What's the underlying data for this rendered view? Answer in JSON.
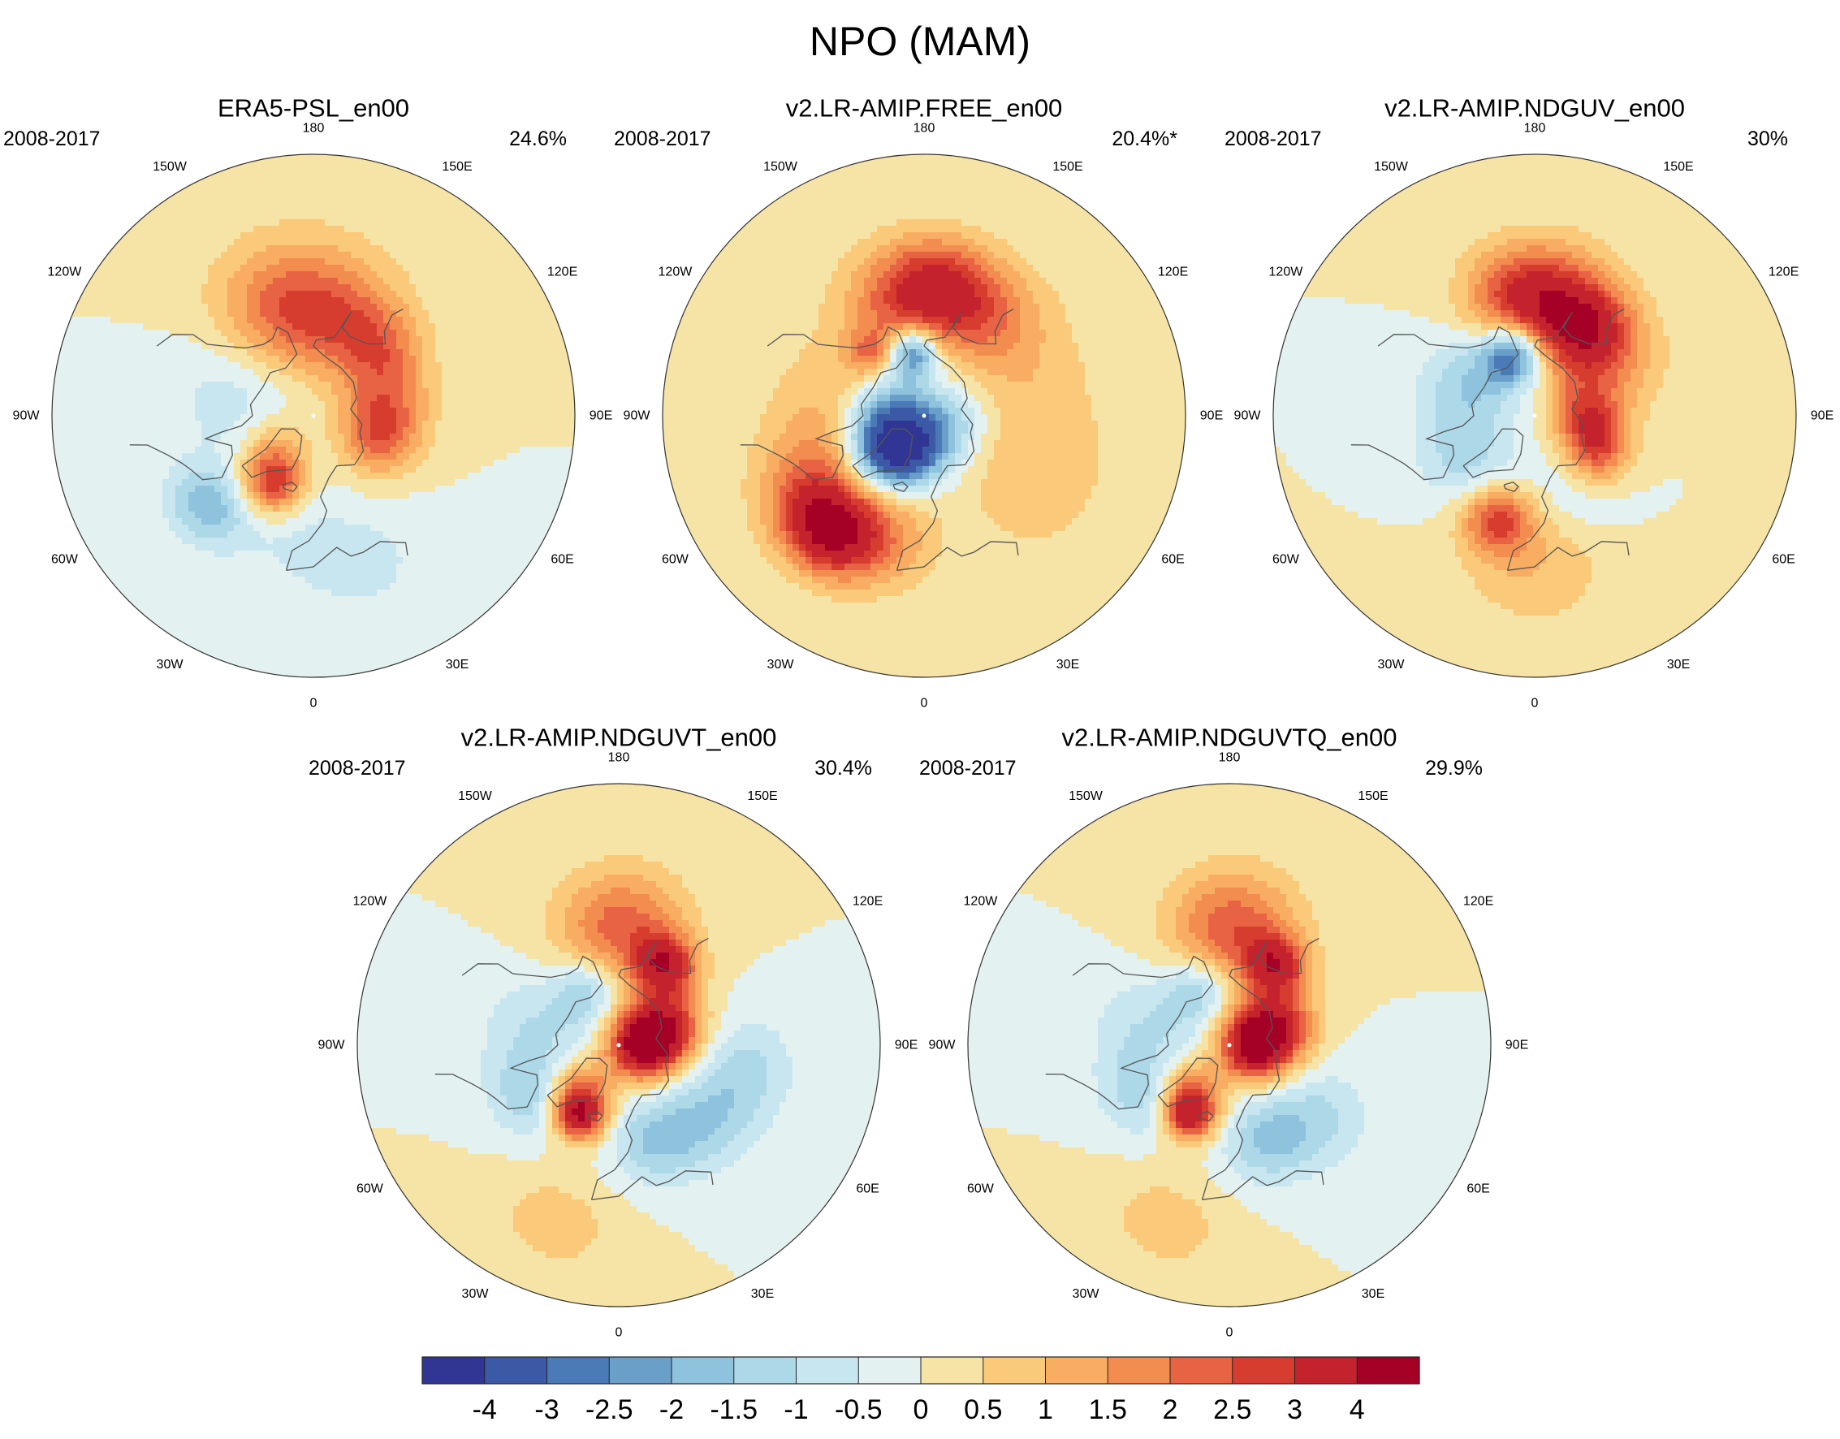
{
  "figure": {
    "title": "NPO (MAM)"
  },
  "chart_data": {
    "type": "heatmap",
    "title": "NPO (MAM)",
    "projection": "north polar stereographic",
    "panels": [
      {
        "title": "ERA5-PSL_en00",
        "period": "2008-2017",
        "variance": "24.6%",
        "features": [
          {
            "lon": -160,
            "lat": 48,
            "value": 1.2,
            "spread": 16
          },
          {
            "lon": -168,
            "lat": 58,
            "value": 1.0,
            "spread": 14
          },
          {
            "lon": 155,
            "lat": 55,
            "value": 1.0,
            "spread": 12
          },
          {
            "lon": 130,
            "lat": 58,
            "value": 1.2,
            "spread": 10
          },
          {
            "lon": 95,
            "lat": 65,
            "value": 1.5,
            "spread": 11
          },
          {
            "lon": 70,
            "lat": 66,
            "value": 1.6,
            "spread": 9
          },
          {
            "lon": -30,
            "lat": 62,
            "value": 2.6,
            "spread": 7
          },
          {
            "lon": -45,
            "lat": 72,
            "value": 1.5,
            "spread": 8
          },
          {
            "lon": -50,
            "lat": 42,
            "value": -1.8,
            "spread": 9
          },
          {
            "lon": -110,
            "lat": 62,
            "value": -0.9,
            "spread": 16
          },
          {
            "lon": -10,
            "lat": 48,
            "value": -0.5,
            "spread": 14
          },
          {
            "lon": 20,
            "lat": 35,
            "value": -0.6,
            "spread": 14
          },
          {
            "lon": 170,
            "lat": 50,
            "value": 0.8,
            "spread": 18
          }
        ]
      },
      {
        "title": "v2.LR-AMIP.FREE_en00",
        "period": "2008-2017",
        "variance": "20.4%*",
        "features": [
          {
            "lon": 175,
            "lat": 45,
            "value": 2.3,
            "spread": 12
          },
          {
            "lon": -165,
            "lat": 50,
            "value": 1.5,
            "spread": 14
          },
          {
            "lon": 150,
            "lat": 48,
            "value": 1.3,
            "spread": 12
          },
          {
            "lon": -40,
            "lat": 38,
            "value": 3.0,
            "spread": 10
          },
          {
            "lon": -55,
            "lat": 45,
            "value": 2.0,
            "spread": 14
          },
          {
            "lon": -20,
            "lat": 45,
            "value": 1.5,
            "spread": 12
          },
          {
            "lon": -140,
            "lat": 62,
            "value": 1.5,
            "spread": 6
          },
          {
            "lon": 120,
            "lat": 55,
            "value": 0.8,
            "spread": 20
          },
          {
            "lon": 60,
            "lat": 45,
            "value": 0.8,
            "spread": 18
          },
          {
            "lon": -100,
            "lat": 55,
            "value": 0.8,
            "spread": 14
          },
          {
            "lon": -45,
            "lat": 72,
            "value": -3.5,
            "spread": 9
          },
          {
            "lon": -10,
            "lat": 80,
            "value": -2.4,
            "spread": 9
          },
          {
            "lon": -170,
            "lat": 68,
            "value": -3.2,
            "spread": 6
          },
          {
            "lon": -100,
            "lat": 78,
            "value": -1.8,
            "spread": 10
          },
          {
            "lon": 90,
            "lat": 80,
            "value": -1.2,
            "spread": 10
          }
        ]
      },
      {
        "title": "v2.LR-AMIP.NDGUV_en00",
        "period": "2008-2017",
        "variance": "30%",
        "features": [
          {
            "lon": 170,
            "lat": 50,
            "value": 2.2,
            "spread": 14
          },
          {
            "lon": 150,
            "lat": 55,
            "value": 2.0,
            "spread": 10
          },
          {
            "lon": -170,
            "lat": 48,
            "value": 1.8,
            "spread": 12
          },
          {
            "lon": 130,
            "lat": 60,
            "value": 1.5,
            "spread": 14
          },
          {
            "lon": 60,
            "lat": 65,
            "value": 2.4,
            "spread": 8
          },
          {
            "lon": 90,
            "lat": 72,
            "value": 2.0,
            "spread": 8
          },
          {
            "lon": -20,
            "lat": 52,
            "value": 2.4,
            "spread": 8
          },
          {
            "lon": 0,
            "lat": 40,
            "value": 1.0,
            "spread": 16
          },
          {
            "lon": -160,
            "lat": 68,
            "value": -3.2,
            "spread": 7
          },
          {
            "lon": -120,
            "lat": 65,
            "value": -1.4,
            "spread": 12
          },
          {
            "lon": -60,
            "lat": 62,
            "value": -1.2,
            "spread": 12
          },
          {
            "lon": 30,
            "lat": 60,
            "value": -0.7,
            "spread": 12
          }
        ]
      },
      {
        "title": "v2.LR-AMIP.NDGUVT_en00",
        "period": "2008-2017",
        "variance": "30.4%",
        "features": [
          {
            "lon": 150,
            "lat": 58,
            "value": 3.2,
            "spread": 7
          },
          {
            "lon": 175,
            "lat": 48,
            "value": 1.4,
            "spread": 14
          },
          {
            "lon": -175,
            "lat": 52,
            "value": 1.0,
            "spread": 14
          },
          {
            "lon": 90,
            "lat": 82,
            "value": 4.2,
            "spread": 8
          },
          {
            "lon": 110,
            "lat": 72,
            "value": 3.0,
            "spread": 9
          },
          {
            "lon": -30,
            "lat": 62,
            "value": 3.5,
            "spread": 6
          },
          {
            "lon": -40,
            "lat": 70,
            "value": 2.0,
            "spread": 8
          },
          {
            "lon": -150,
            "lat": 68,
            "value": -1.4,
            "spread": 8
          },
          {
            "lon": -100,
            "lat": 62,
            "value": -1.0,
            "spread": 14
          },
          {
            "lon": -60,
            "lat": 55,
            "value": -1.2,
            "spread": 10
          },
          {
            "lon": 20,
            "lat": 55,
            "value": -1.4,
            "spread": 10
          },
          {
            "lon": 50,
            "lat": 50,
            "value": -1.2,
            "spread": 12
          },
          {
            "lon": 80,
            "lat": 45,
            "value": -1.0,
            "spread": 12
          },
          {
            "lon": -20,
            "lat": 25,
            "value": 0.8,
            "spread": 12
          }
        ]
      },
      {
        "title": "v2.LR-AMIP.NDGUVTQ_en00",
        "period": "2008-2017",
        "variance": "29.9%",
        "features": [
          {
            "lon": 150,
            "lat": 58,
            "value": 3.0,
            "spread": 7
          },
          {
            "lon": 175,
            "lat": 48,
            "value": 1.5,
            "spread": 14
          },
          {
            "lon": -175,
            "lat": 52,
            "value": 1.0,
            "spread": 14
          },
          {
            "lon": 90,
            "lat": 82,
            "value": 4.0,
            "spread": 8
          },
          {
            "lon": 110,
            "lat": 72,
            "value": 3.0,
            "spread": 9
          },
          {
            "lon": -30,
            "lat": 62,
            "value": 3.2,
            "spread": 6
          },
          {
            "lon": -40,
            "lat": 70,
            "value": 2.0,
            "spread": 8
          },
          {
            "lon": -150,
            "lat": 68,
            "value": -1.4,
            "spread": 8
          },
          {
            "lon": -100,
            "lat": 62,
            "value": -1.0,
            "spread": 14
          },
          {
            "lon": -60,
            "lat": 55,
            "value": -1.1,
            "spread": 10
          },
          {
            "lon": 20,
            "lat": 55,
            "value": -1.4,
            "spread": 10
          },
          {
            "lon": 50,
            "lat": 50,
            "value": -1.1,
            "spread": 12
          },
          {
            "lon": -20,
            "lat": 25,
            "value": 0.8,
            "spread": 12
          }
        ]
      }
    ],
    "longitude_labels": [
      {
        "lon": 180,
        "text": "180"
      },
      {
        "lon": 150,
        "text": "150E"
      },
      {
        "lon": 120,
        "text": "120E"
      },
      {
        "lon": 90,
        "text": "90E"
      },
      {
        "lon": 60,
        "text": "60E"
      },
      {
        "lon": 30,
        "text": "30E"
      },
      {
        "lon": 0,
        "text": "0"
      },
      {
        "lon": -30,
        "text": "30W"
      },
      {
        "lon": -60,
        "text": "60W"
      },
      {
        "lon": -90,
        "text": "90W"
      },
      {
        "lon": -120,
        "text": "120W"
      },
      {
        "lon": -150,
        "text": "150W"
      }
    ],
    "colorbar": {
      "labels": [
        "-4",
        "-3",
        "-2.5",
        "-2",
        "-1.5",
        "-1",
        "-0.5",
        "0",
        "0.5",
        "1",
        "1.5",
        "2",
        "2.5",
        "3",
        "4"
      ],
      "thresholds": [
        -4,
        -3,
        -2.5,
        -2,
        -1.5,
        -1,
        -0.5,
        0,
        0.5,
        1,
        1.5,
        2,
        2.5,
        3,
        4
      ],
      "colors": [
        "#313695",
        "#3c59a6",
        "#4a7bb7",
        "#6a9fca",
        "#8fc3dd",
        "#acd8e8",
        "#c8e6f0",
        "#e3f2f0",
        "#f6e3a6",
        "#fac979",
        "#f8ad62",
        "#f38c4f",
        "#e86343",
        "#d73d2e",
        "#c4232d",
        "#a50026"
      ]
    }
  }
}
